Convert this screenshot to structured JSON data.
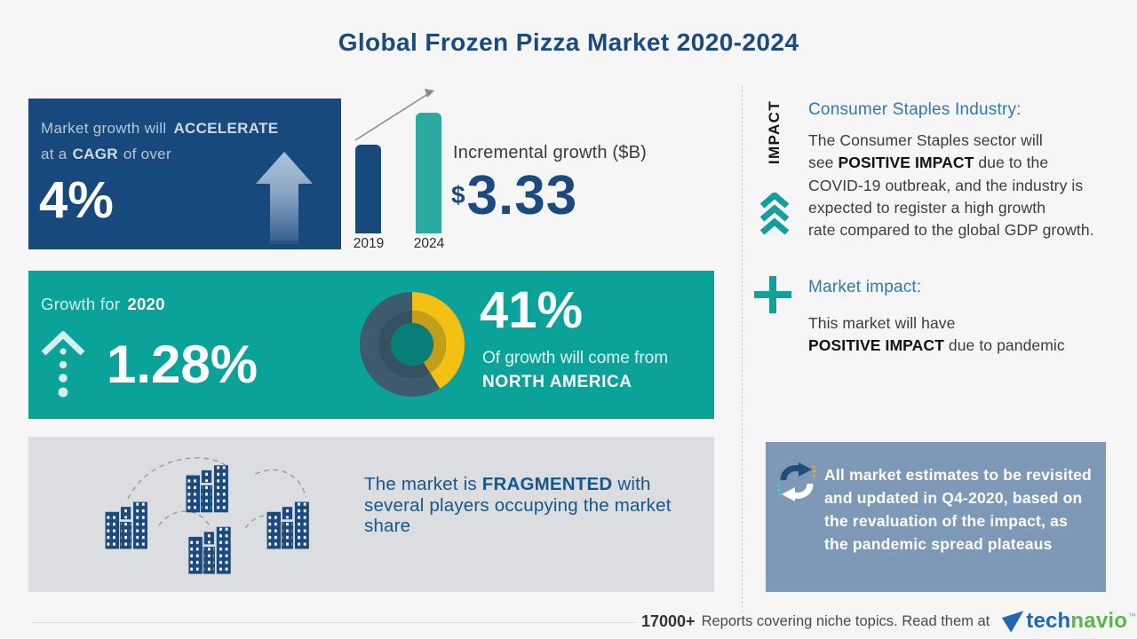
{
  "page": {
    "title": "Global Frozen Pizza Market 2020-2024"
  },
  "colors": {
    "navy": "#17497D",
    "teal": "#0BA29A",
    "teal_bar": "#2BAAA1",
    "steel_blue": "#7E99B7",
    "gray_card": "#DBDDE0",
    "yellow": "#F2C114",
    "slate": "#3E5B6E",
    "heading_blue": "#2E79B5",
    "logo_blue": "#1D67B5",
    "logo_green": "#57B947"
  },
  "cards": {
    "cagr": {
      "line1_normal": "Market growth will",
      "line1_bold": "ACCELERATE",
      "line2_a": "at a",
      "line2_bold": "CAGR",
      "line2_b": "of over",
      "value": "4%"
    },
    "growth": {
      "label": "Growth for",
      "year": "2020",
      "value": "1.28%",
      "share_value": "41%",
      "share_line": "Of growth will come from",
      "share_region": "NORTH AMERICA"
    },
    "fragmented": {
      "pre": "The market is",
      "bold": "FRAGMENTED",
      "rest": "with several players occupying the market share"
    }
  },
  "incremental": {
    "label": "Incremental growth ($B)",
    "currency": "$",
    "value": "3.33",
    "years": [
      "2019",
      "2024"
    ]
  },
  "impact": {
    "vertical_label": "IMPACT",
    "consumer": {
      "heading": "Consumer Staples Industry:",
      "l1": "The Consumer Staples sector will",
      "l2a": "see",
      "l2b": "POSITIVE IMPACT",
      "l2c": "due to the",
      "l3": "COVID-19 outbreak, and the industry is",
      "l4": "expected to register a high growth",
      "l5": "rate compared to the global GDP growth."
    },
    "market": {
      "heading": "Market impact:",
      "l1": "This market will have",
      "l2b": "POSITIVE IMPACT",
      "l2c": "due to pandemic"
    },
    "note": "All market estimates to be revisited and updated in Q4-2020, based on the revaluation of the impact, as the pandemic spread plateaus"
  },
  "footer": {
    "count": "17000+",
    "text": "Reports covering niche topics. Read them at",
    "logo": {
      "tech": "tech",
      "navio": "navio",
      "tm": "™"
    }
  },
  "chart_data": [
    {
      "type": "bar",
      "title": "Incremental growth ($B)",
      "categories": [
        "2019",
        "2024"
      ],
      "values_relative": [
        0.735,
        1.0
      ],
      "annotation_value": "$3.33",
      "colors": [
        "#17497D",
        "#2BAAA1"
      ],
      "trend_arrow": true
    },
    {
      "type": "pie",
      "title": "Share of growth by region",
      "labels": [
        "NORTH AMERICA",
        "other"
      ],
      "values": [
        41,
        59
      ],
      "colors": [
        "#F2C114",
        "#3E5B6E"
      ],
      "donut": true,
      "start_angle_deg": 0,
      "legend_position": "none"
    }
  ]
}
